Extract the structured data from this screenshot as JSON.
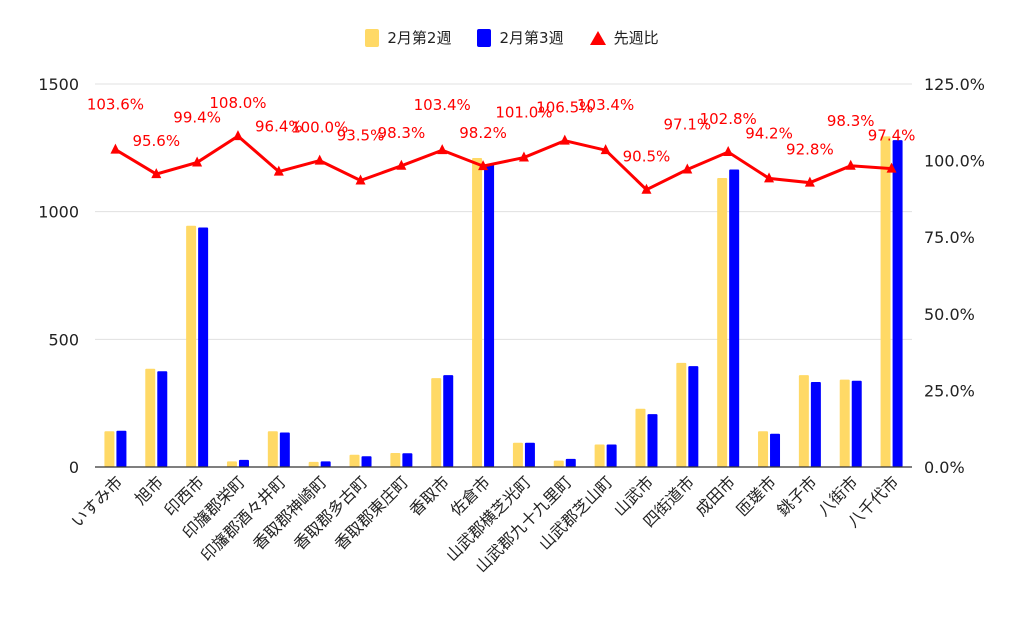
{
  "chart_data": {
    "type": "bar",
    "categories": [
      "いすみ市",
      "旭市",
      "印西市",
      "印旛郡栄町",
      "印旛郡酒々井町",
      "香取郡神崎町",
      "香取郡多古町",
      "香取郡東庄町",
      "香取市",
      "佐倉市",
      "山武郡横芝光町",
      "山武郡九十九里町",
      "山武郡芝山町",
      "山武市",
      "四街道市",
      "成田市",
      "匝瑳市",
      "銚子市",
      "八街市",
      "八千代市"
    ],
    "series": [
      {
        "name": "2月第2週",
        "type": "bar",
        "axis": "left",
        "color": "#ffd966",
        "values": [
          140,
          385,
          945,
          22,
          140,
          20,
          48,
          55,
          348,
          1210,
          95,
          25,
          88,
          228,
          408,
          1132,
          140,
          360,
          342,
          1295
        ]
      },
      {
        "name": "2月第3週",
        "type": "bar",
        "axis": "left",
        "color": "#0000ff",
        "values": [
          142,
          375,
          938,
          28,
          135,
          22,
          42,
          54,
          360,
          1185,
          95,
          32,
          88,
          207,
          395,
          1165,
          130,
          333,
          338,
          1280
        ]
      },
      {
        "name": "先週比",
        "type": "line",
        "axis": "right",
        "color": "#ff0000",
        "values": [
          103.6,
          95.6,
          99.4,
          108.0,
          96.4,
          100.0,
          93.5,
          98.3,
          103.4,
          98.2,
          101.0,
          106.5,
          103.4,
          90.5,
          97.1,
          102.8,
          94.2,
          92.8,
          98.3,
          97.4
        ],
        "labels": [
          "103.6%",
          "95.6%",
          "99.4%",
          "108.0%",
          "96.4%",
          "100.0%",
          "93.5%",
          "98.3%",
          "103.4%",
          "98.2%",
          "101.0%",
          "106.5%",
          "103.4%",
          "90.5%",
          "97.1%",
          "102.8%",
          "94.2%",
          "92.8%",
          "98.3%",
          "97.4%"
        ]
      }
    ],
    "left_axis": {
      "ylim": [
        0,
        1500
      ],
      "ticks": [
        0,
        500,
        1000,
        1500
      ],
      "tick_labels": [
        "0",
        "500",
        "1000",
        "1500"
      ]
    },
    "right_axis": {
      "ylim": [
        0,
        125
      ],
      "ticks": [
        0,
        25,
        50,
        75,
        100,
        125
      ],
      "tick_labels": [
        "0.0%",
        "25.0%",
        "50.0%",
        "75.0%",
        "100.0%",
        "125.0%"
      ]
    },
    "grid": true,
    "legend_position": "top"
  },
  "legend": {
    "bar1": "2月第2週",
    "bar2": "2月第3週",
    "line": "先週比"
  },
  "colors": {
    "bar1": "#ffd966",
    "bar2": "#0000ff",
    "line": "#ff0000",
    "grid": "#e0e0e0",
    "axis": "#333333"
  }
}
